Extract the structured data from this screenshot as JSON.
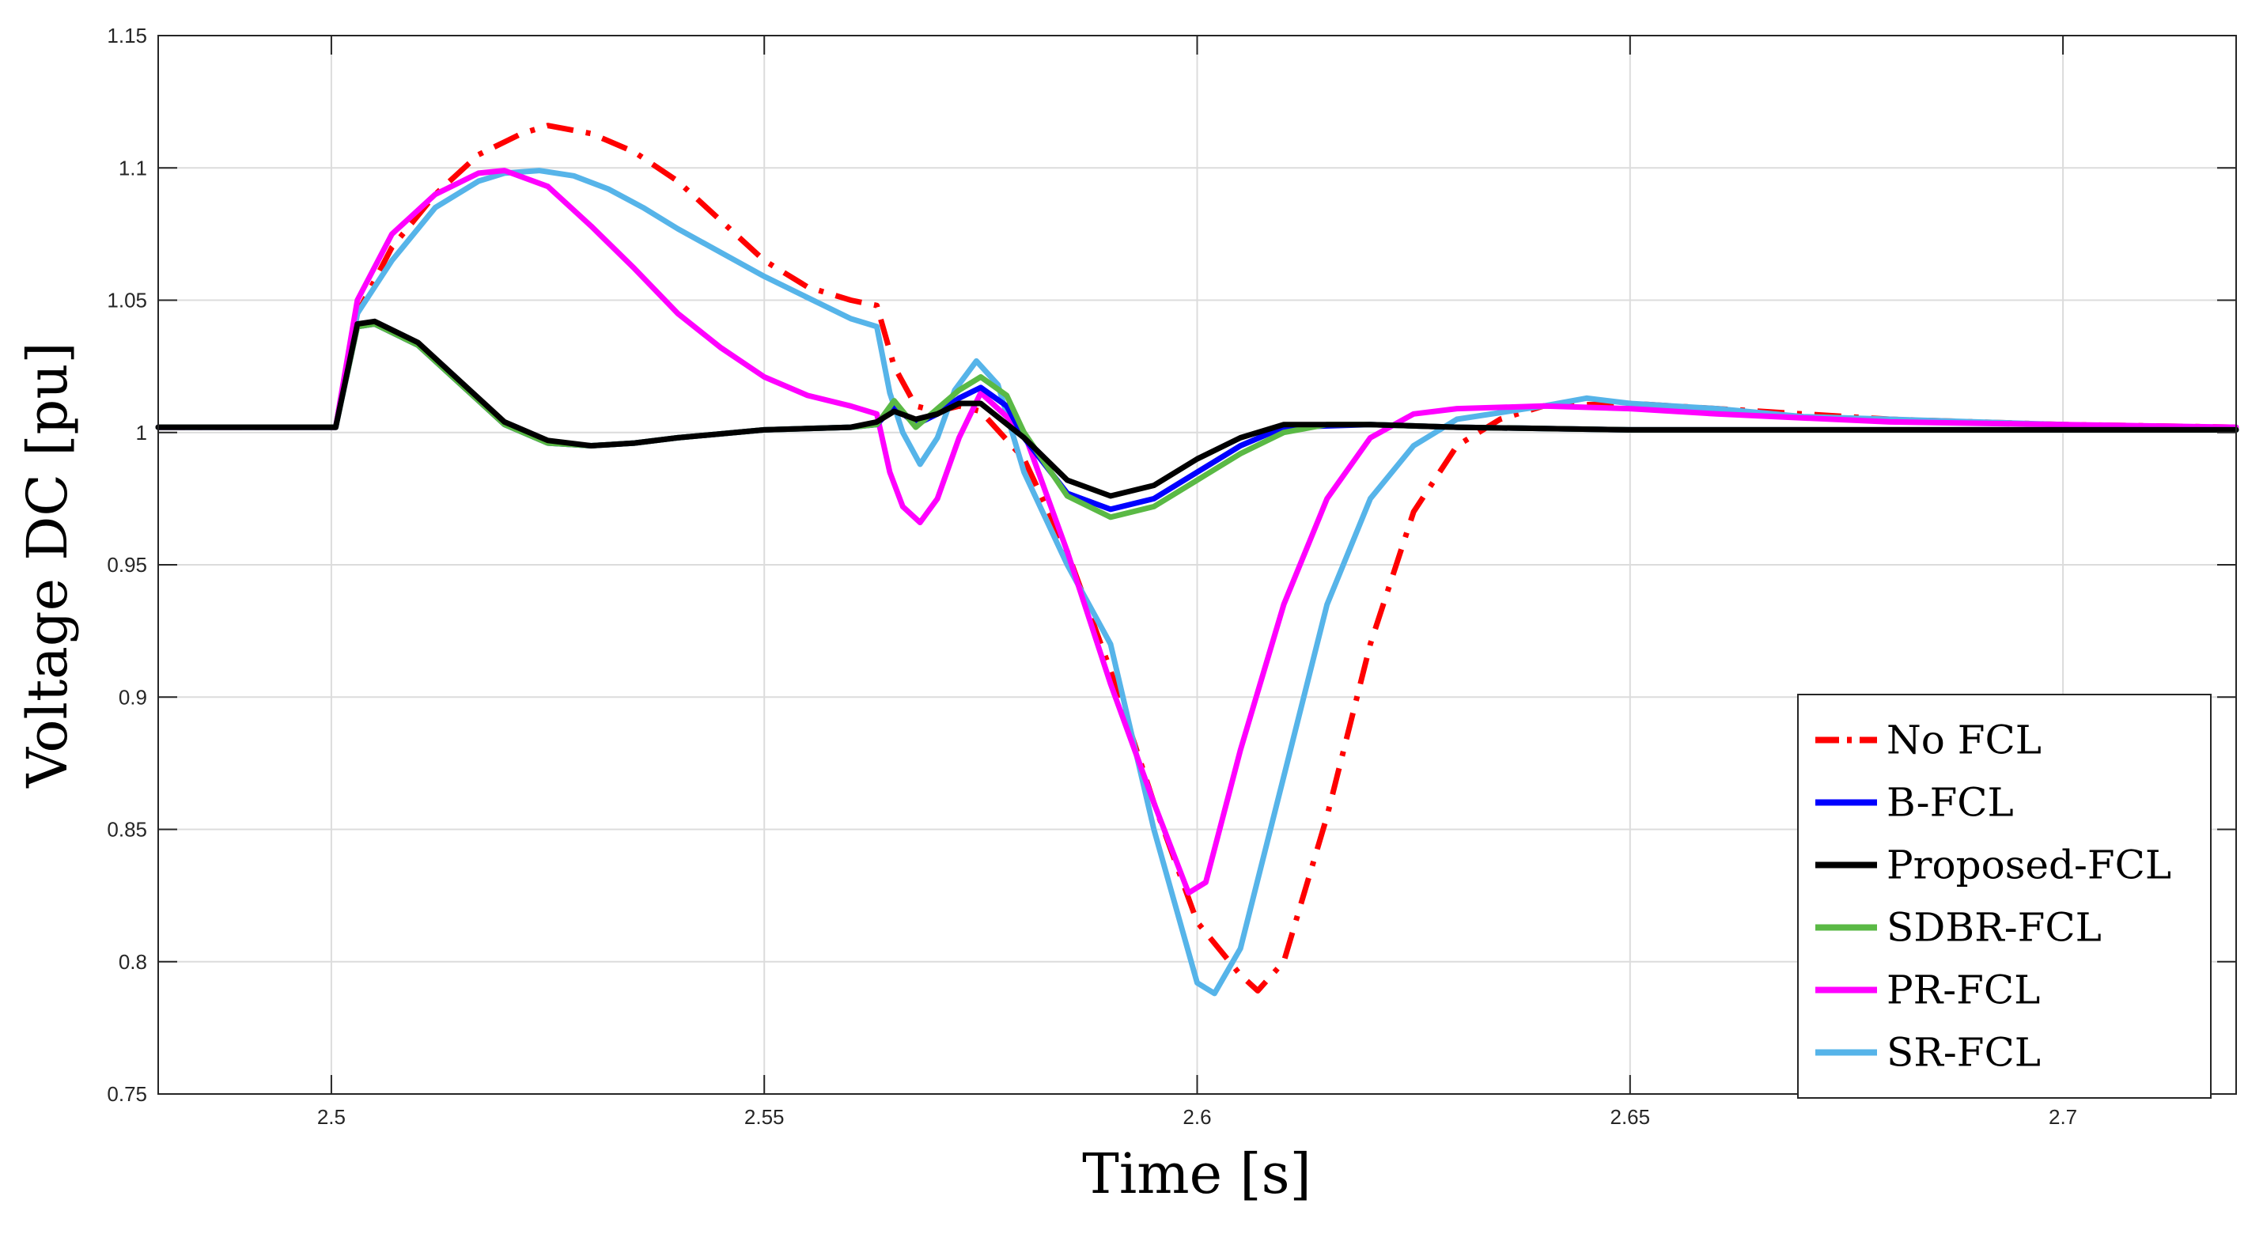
{
  "chart_data": {
    "type": "line",
    "title": "",
    "xlabel": "Time [s]",
    "ylabel": "Voltage DC [pu]",
    "xlim": [
      2.48,
      2.72
    ],
    "ylim": [
      0.75,
      1.15
    ],
    "xticks": [
      2.5,
      2.55,
      2.6,
      2.65,
      2.7
    ],
    "xtick_labels": [
      "2.5",
      "2.55",
      "2.6",
      "2.65",
      "2.7"
    ],
    "yticks": [
      0.75,
      0.8,
      0.85,
      0.9,
      0.95,
      1.0,
      1.05,
      1.1,
      1.15
    ],
    "ytick_labels": [
      "0.75",
      "0.8",
      "0.85",
      "0.9",
      "0.95",
      "1",
      "1.05",
      "1.1",
      "1.15"
    ],
    "grid": true,
    "legend_position": "bottom-right",
    "series": [
      {
        "name": "No FCL",
        "color": "#ff0000",
        "style": "dashdot",
        "x": [
          2.48,
          2.5,
          2.5005,
          2.503,
          2.507,
          2.512,
          2.517,
          2.522,
          2.525,
          2.53,
          2.535,
          2.54,
          2.545,
          2.55,
          2.555,
          2.56,
          2.563,
          2.565,
          2.5675,
          2.57,
          2.5725,
          2.575,
          2.58,
          2.585,
          2.59,
          2.595,
          2.6,
          2.605,
          2.607,
          2.61,
          2.615,
          2.62,
          2.625,
          2.63,
          2.635,
          2.64,
          2.65,
          2.66,
          2.67,
          2.68,
          2.69,
          2.7,
          2.72
        ],
        "y": [
          1.002,
          1.002,
          1.002,
          1.045,
          1.07,
          1.09,
          1.105,
          1.113,
          1.116,
          1.113,
          1.106,
          1.095,
          1.08,
          1.065,
          1.055,
          1.05,
          1.048,
          1.025,
          1.01,
          1.008,
          1.01,
          1.008,
          0.99,
          0.955,
          0.91,
          0.86,
          0.815,
          0.795,
          0.789,
          0.8,
          0.855,
          0.92,
          0.97,
          0.995,
          1.005,
          1.01,
          1.011,
          1.009,
          1.007,
          1.005,
          1.004,
          1.003,
          1.002
        ]
      },
      {
        "name": "B-FCL",
        "color": "#0000ff",
        "style": "solid",
        "x": [
          2.48,
          2.5,
          2.5005,
          2.503,
          2.505,
          2.51,
          2.515,
          2.52,
          2.525,
          2.53,
          2.535,
          2.54,
          2.55,
          2.56,
          2.563,
          2.565,
          2.5675,
          2.57,
          2.5725,
          2.575,
          2.578,
          2.58,
          2.585,
          2.59,
          2.595,
          2.6,
          2.605,
          2.61,
          2.62,
          2.63,
          2.65,
          2.7,
          2.72
        ],
        "y": [
          1.002,
          1.002,
          1.002,
          1.04,
          1.041,
          1.033,
          1.018,
          1.003,
          0.996,
          0.995,
          0.996,
          0.998,
          1.001,
          1.002,
          1.003,
          1.01,
          1.003,
          1.007,
          1.013,
          1.017,
          1.01,
          0.998,
          0.977,
          0.971,
          0.975,
          0.985,
          0.995,
          1.002,
          1.003,
          1.002,
          1.001,
          1.001,
          1.001
        ]
      },
      {
        "name": "Proposed-FCL",
        "color": "#000000",
        "style": "solid",
        "x": [
          2.48,
          2.5,
          2.5005,
          2.503,
          2.505,
          2.51,
          2.515,
          2.52,
          2.525,
          2.53,
          2.535,
          2.54,
          2.55,
          2.56,
          2.563,
          2.565,
          2.5675,
          2.57,
          2.5725,
          2.575,
          2.58,
          2.585,
          2.59,
          2.595,
          2.6,
          2.605,
          2.61,
          2.62,
          2.63,
          2.65,
          2.7,
          2.72
        ],
        "y": [
          1.002,
          1.002,
          1.002,
          1.041,
          1.042,
          1.034,
          1.019,
          1.004,
          0.997,
          0.995,
          0.996,
          0.998,
          1.001,
          1.002,
          1.004,
          1.008,
          1.005,
          1.007,
          1.011,
          1.011,
          0.998,
          0.982,
          0.976,
          0.98,
          0.99,
          0.998,
          1.003,
          1.003,
          1.002,
          1.001,
          1.001,
          1.001
        ]
      },
      {
        "name": "SDBR-FCL",
        "color": "#5ab945",
        "style": "solid",
        "x": [
          2.48,
          2.5,
          2.5005,
          2.503,
          2.505,
          2.51,
          2.515,
          2.52,
          2.525,
          2.53,
          2.535,
          2.54,
          2.55,
          2.56,
          2.563,
          2.565,
          2.5675,
          2.57,
          2.5725,
          2.575,
          2.578,
          2.58,
          2.585,
          2.59,
          2.595,
          2.6,
          2.605,
          2.61,
          2.615,
          2.62,
          2.63,
          2.65,
          2.7,
          2.72
        ],
        "y": [
          1.002,
          1.002,
          1.002,
          1.04,
          1.041,
          1.033,
          1.018,
          1.003,
          0.996,
          0.995,
          0.996,
          0.998,
          1.001,
          1.002,
          1.003,
          1.012,
          1.002,
          1.009,
          1.016,
          1.021,
          1.014,
          1.0,
          0.976,
          0.968,
          0.972,
          0.982,
          0.992,
          1.0,
          1.003,
          1.003,
          1.002,
          1.001,
          1.001,
          1.001
        ]
      },
      {
        "name": "PR-FCL",
        "color": "#ff00ff",
        "style": "solid",
        "x": [
          2.48,
          2.5,
          2.5005,
          2.503,
          2.507,
          2.512,
          2.517,
          2.52,
          2.525,
          2.53,
          2.535,
          2.54,
          2.545,
          2.55,
          2.555,
          2.56,
          2.563,
          2.5645,
          2.566,
          2.568,
          2.57,
          2.5725,
          2.575,
          2.58,
          2.585,
          2.59,
          2.595,
          2.599,
          2.601,
          2.605,
          2.61,
          2.615,
          2.62,
          2.625,
          2.63,
          2.64,
          2.65,
          2.66,
          2.68,
          2.7,
          2.72
        ],
        "y": [
          1.002,
          1.002,
          1.002,
          1.05,
          1.075,
          1.09,
          1.098,
          1.099,
          1.093,
          1.078,
          1.062,
          1.045,
          1.032,
          1.021,
          1.014,
          1.01,
          1.007,
          0.985,
          0.972,
          0.966,
          0.975,
          0.998,
          1.015,
          1.0,
          0.955,
          0.905,
          0.86,
          0.826,
          0.83,
          0.88,
          0.935,
          0.975,
          0.998,
          1.007,
          1.009,
          1.01,
          1.009,
          1.007,
          1.004,
          1.003,
          1.002
        ]
      },
      {
        "name": "SR-FCL",
        "color": "#56b4e9",
        "style": "solid",
        "x": [
          2.48,
          2.5,
          2.5005,
          2.503,
          2.507,
          2.512,
          2.517,
          2.52,
          2.524,
          2.528,
          2.532,
          2.536,
          2.54,
          2.545,
          2.55,
          2.555,
          2.56,
          2.563,
          2.5645,
          2.566,
          2.568,
          2.57,
          2.572,
          2.5745,
          2.577,
          2.58,
          2.585,
          2.59,
          2.595,
          2.6,
          2.602,
          2.605,
          2.61,
          2.615,
          2.62,
          2.625,
          2.63,
          2.64,
          2.645,
          2.65,
          2.66,
          2.67,
          2.68,
          2.69,
          2.7,
          2.71,
          2.72
        ],
        "y": [
          1.002,
          1.002,
          1.002,
          1.045,
          1.065,
          1.085,
          1.095,
          1.098,
          1.099,
          1.097,
          1.092,
          1.085,
          1.077,
          1.068,
          1.059,
          1.051,
          1.043,
          1.04,
          1.015,
          1.0,
          0.988,
          0.998,
          1.016,
          1.027,
          1.018,
          0.985,
          0.95,
          0.92,
          0.85,
          0.792,
          0.788,
          0.805,
          0.87,
          0.935,
          0.975,
          0.995,
          1.005,
          1.01,
          1.013,
          1.011,
          1.009,
          1.006,
          1.005,
          1.004,
          1.003,
          1.002,
          1.001
        ]
      }
    ]
  }
}
